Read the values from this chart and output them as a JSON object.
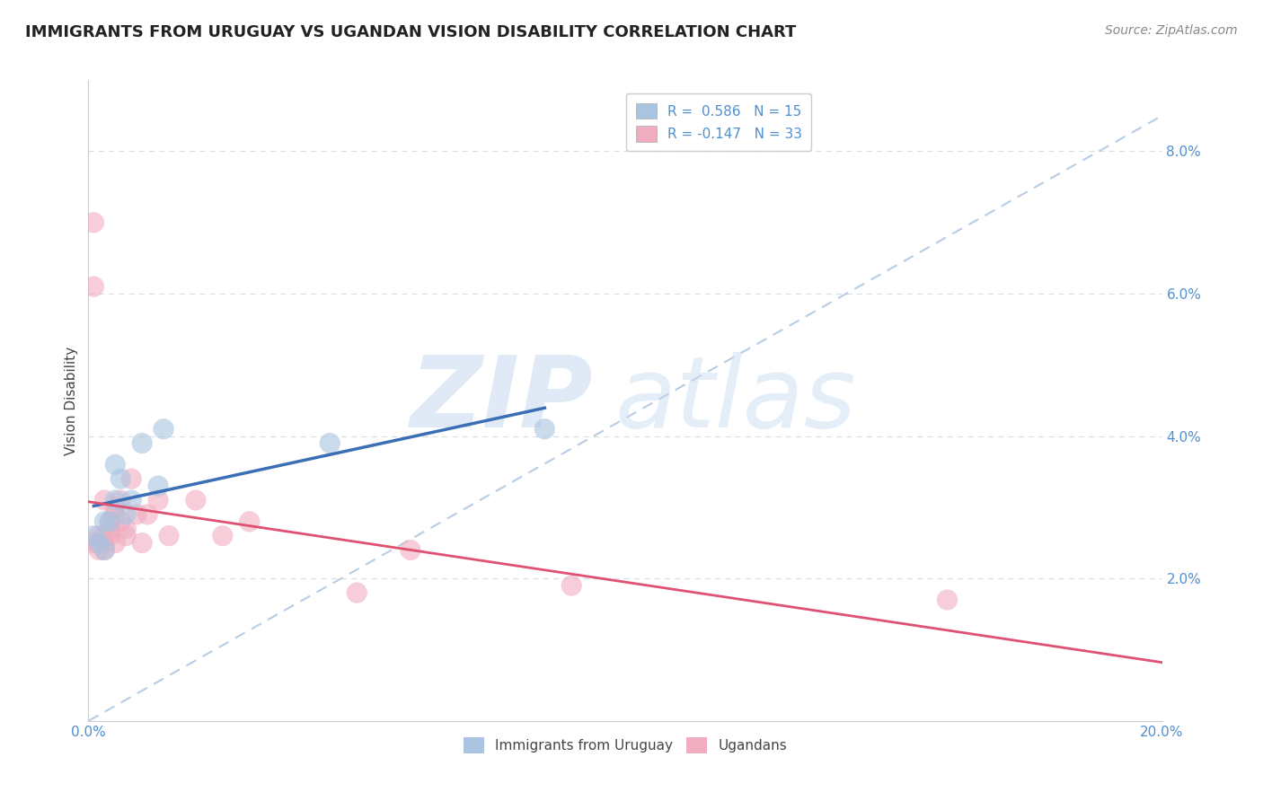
{
  "title": "IMMIGRANTS FROM URUGUAY VS UGANDAN VISION DISABILITY CORRELATION CHART",
  "source": "Source: ZipAtlas.com",
  "ylabel": "Vision Disability",
  "xlim": [
    0,
    0.2
  ],
  "ylim": [
    0,
    0.09
  ],
  "xticks": [
    0.0,
    0.05,
    0.1,
    0.15,
    0.2
  ],
  "xtick_labels": [
    "0.0%",
    "",
    "",
    "",
    "20.0%"
  ],
  "yticks": [
    0.02,
    0.04,
    0.06,
    0.08
  ],
  "ytick_labels": [
    "2.0%",
    "4.0%",
    "6.0%",
    "8.0%"
  ],
  "legend1_label": "R =  0.586   N = 15",
  "legend2_label": "R = -0.147   N = 33",
  "blue_dot_color": "#a8c4e0",
  "pink_dot_color": "#f0adc0",
  "blue_line_color": "#3a6eb5",
  "pink_line_color": "#e05070",
  "dash_line_color": "#9ab8d8",
  "grid_color": "#d0d8e0",
  "background_color": "#ffffff",
  "watermark_zip": "ZIP",
  "watermark_atlas": "atlas",
  "tick_color": "#5090d0",
  "ylabel_color": "#444444",
  "title_color": "#222222",
  "source_color": "#888888",
  "uruguay_points_x": [
    0.001,
    0.002,
    0.003,
    0.003,
    0.004,
    0.005,
    0.005,
    0.006,
    0.007,
    0.008,
    0.01,
    0.013,
    0.014,
    0.045,
    0.085
  ],
  "uruguay_points_y": [
    0.026,
    0.025,
    0.024,
    0.028,
    0.028,
    0.036,
    0.031,
    0.034,
    0.029,
    0.031,
    0.039,
    0.033,
    0.041,
    0.039,
    0.041
  ],
  "ugandan_points_x": [
    0.001,
    0.001,
    0.001,
    0.002,
    0.002,
    0.002,
    0.003,
    0.003,
    0.003,
    0.003,
    0.004,
    0.004,
    0.004,
    0.005,
    0.005,
    0.005,
    0.006,
    0.006,
    0.007,
    0.007,
    0.008,
    0.009,
    0.01,
    0.011,
    0.013,
    0.015,
    0.02,
    0.025,
    0.03,
    0.05,
    0.06,
    0.09,
    0.16
  ],
  "ugandan_points_y": [
    0.07,
    0.061,
    0.025,
    0.026,
    0.025,
    0.024,
    0.031,
    0.026,
    0.025,
    0.024,
    0.028,
    0.027,
    0.026,
    0.03,
    0.029,
    0.025,
    0.031,
    0.028,
    0.027,
    0.026,
    0.034,
    0.029,
    0.025,
    0.029,
    0.031,
    0.026,
    0.031,
    0.026,
    0.028,
    0.018,
    0.024,
    0.019,
    0.017
  ],
  "dot_size": 280,
  "dot_alpha": 0.6,
  "title_fontsize": 13,
  "axis_label_fontsize": 11,
  "tick_fontsize": 11,
  "legend_fontsize": 11,
  "source_fontsize": 10
}
